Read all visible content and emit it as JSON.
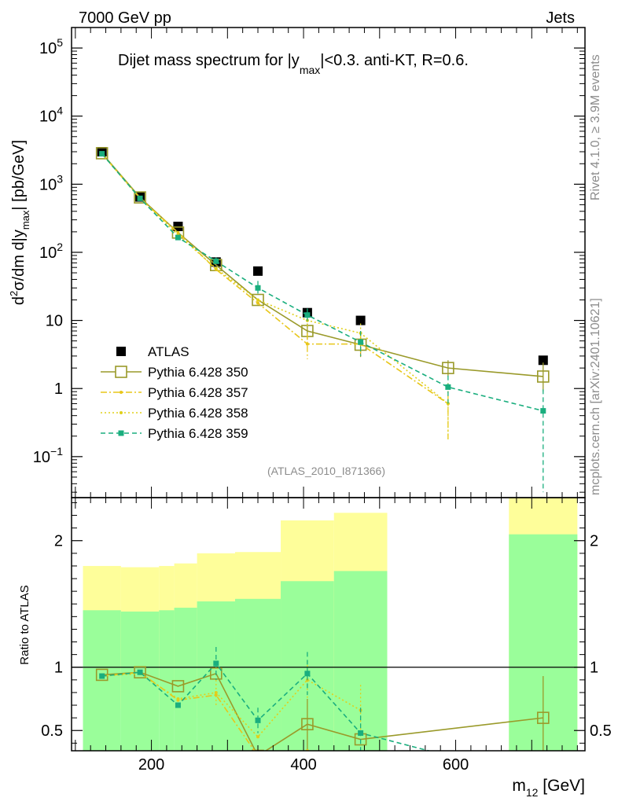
{
  "header": {
    "left": "7000 GeV pp",
    "right": "Jets"
  },
  "side_labels": {
    "rivet": "Rivet 4.1.0, ≥ 3.9M events",
    "mcplots": "mcplots.cern.ch [arXiv:2401.10621]"
  },
  "chart_data": [
    {
      "type": "scatter",
      "panel": "main",
      "title_pre": "Dijet mass spectrum for |y",
      "title_sub": "max",
      "title_post": "|<0.3.  anti-KT, R=0.6.",
      "ylabel_pre": "d",
      "ylabel_sup": "2",
      "ylabel_mid": "σ/dm d|y",
      "ylabel_sub": "max",
      "ylabel_post": "| [pb/GeV]",
      "yscale": "log",
      "ylim": [
        0.025,
        200000
      ],
      "xlim": [
        95,
        770
      ],
      "y_ticks": [
        {
          "value": 0.1,
          "base": "10",
          "exp": "−1"
        },
        {
          "value": 1,
          "base": "1",
          "exp": ""
        },
        {
          "value": 10,
          "base": "10",
          "exp": ""
        },
        {
          "value": 100,
          "base": "10",
          "exp": "2"
        },
        {
          "value": 1000,
          "base": "10",
          "exp": "3"
        },
        {
          "value": 10000,
          "base": "10",
          "exp": "4"
        },
        {
          "value": 100000,
          "base": "10",
          "exp": "5"
        }
      ],
      "watermark": "(ATLAS_2010_I871366)",
      "x": [
        135,
        185,
        235,
        285,
        340,
        405,
        475,
        590,
        715
      ],
      "x_bins": [
        [
          110,
          160
        ],
        [
          160,
          210
        ],
        [
          210,
          260
        ],
        [
          260,
          310
        ],
        [
          310,
          370
        ],
        [
          370,
          440
        ],
        [
          440,
          510
        ],
        [
          510,
          670
        ],
        [
          670,
          760
        ]
      ],
      "series": [
        {
          "name": "ATLAS",
          "color": "#000000",
          "style": "data",
          "values": [
            3000,
            650,
            240,
            72,
            53,
            13,
            10,
            null,
            2.6
          ]
        },
        {
          "name": "Pythia 6.428 350",
          "color": "#9a9a2a",
          "style": "solid",
          "values": [
            2850,
            640,
            195,
            65,
            20,
            7,
            4.4,
            2.0,
            1.5
          ],
          "err_low": [
            null,
            null,
            null,
            null,
            null,
            1.8,
            1.5,
            0.5,
            0.6
          ],
          "err_high": [
            null,
            null,
            null,
            null,
            null,
            2.0,
            1.8,
            0.6,
            0.9
          ]
        },
        {
          "name": "Pythia 6.428 357",
          "color": "#e8c619",
          "style": "dashdot",
          "values": [
            2800,
            620,
            195,
            56,
            18,
            4.5,
            4.5,
            0.6,
            null
          ],
          "err_low": [
            null,
            null,
            null,
            null,
            null,
            1.8,
            1.5,
            0.42,
            null
          ],
          "err_high": [
            null,
            null,
            null,
            null,
            null,
            2.0,
            1.8,
            0.6,
            null
          ]
        },
        {
          "name": "Pythia 6.428 358",
          "color": "#e0d01a",
          "style": "dotted",
          "values": [
            2800,
            620,
            180,
            58,
            20,
            10,
            6.5,
            0.6,
            null
          ],
          "err_low": [
            null,
            null,
            null,
            null,
            null,
            2.5,
            2.0,
            0.42,
            null
          ],
          "err_high": [
            null,
            null,
            null,
            null,
            null,
            3.0,
            2.5,
            0.6,
            null
          ]
        },
        {
          "name": "Pythia 6.428 359",
          "color": "#1aae7e",
          "style": "dashed",
          "values": [
            2800,
            620,
            165,
            74,
            30,
            12,
            4.8,
            1.05,
            0.47
          ],
          "err_low": [
            null,
            null,
            null,
            10,
            6,
            2.5,
            1.8,
            0.45,
            0.44
          ],
          "err_high": [
            null,
            null,
            null,
            10,
            8,
            3.0,
            2.2,
            0.5,
            0.5
          ]
        }
      ]
    },
    {
      "type": "scatter",
      "panel": "ratio",
      "ylabel": "Ratio to ATLAS",
      "xlabel_pre": "m",
      "xlabel_sub": "12",
      "xlabel_post": " [GeV]",
      "ylim": [
        0.34,
        2.34
      ],
      "xlim": [
        95,
        770
      ],
      "x_ticks": [
        200,
        400,
        600
      ],
      "y_ticks": [
        0.5,
        1,
        2
      ],
      "reference_line": 1,
      "bands": {
        "x_bins": [
          [
            110,
            160
          ],
          [
            160,
            210
          ],
          [
            210,
            230
          ],
          [
            230,
            260
          ],
          [
            260,
            310
          ],
          [
            310,
            370
          ],
          [
            370,
            440
          ],
          [
            440,
            510
          ],
          [
            670,
            760
          ]
        ],
        "yellow_low": [
          0.67,
          0.67,
          0.66,
          0.66,
          0.6,
          0.58,
          0.34,
          0.34,
          0.34
        ],
        "yellow_high": [
          1.8,
          1.79,
          1.8,
          1.82,
          1.9,
          1.91,
          2.16,
          2.22,
          2.34
        ],
        "green_low": [
          0.34,
          0.34,
          0.34,
          0.34,
          0.34,
          0.34,
          0.34,
          0.34,
          0.34
        ],
        "green_high": [
          1.45,
          1.44,
          1.45,
          1.47,
          1.52,
          1.54,
          1.68,
          1.76,
          2.05
        ],
        "yellow_color": "#fefe9a",
        "green_color": "#9afe9a"
      },
      "x": [
        135,
        185,
        235,
        285,
        340,
        405,
        475,
        590,
        715
      ],
      "series": [
        {
          "name": "Pythia 6.428 350",
          "color": "#9a9a2a",
          "style": "solid",
          "values": [
            0.94,
            0.96,
            0.85,
            0.95,
            0.3,
            0.55,
            0.43,
            null,
            0.6
          ],
          "err_low": [
            null,
            null,
            null,
            null,
            null,
            0.2,
            null,
            null,
            0.3
          ],
          "err_high": [
            null,
            null,
            null,
            null,
            null,
            0.2,
            null,
            null,
            0.33
          ]
        },
        {
          "name": "Pythia 6.428 357",
          "color": "#e8c619",
          "style": "dashdot",
          "values": [
            0.93,
            0.96,
            0.74,
            0.78,
            0.3,
            0.34,
            null,
            null,
            null
          ]
        },
        {
          "name": "Pythia 6.428 358",
          "color": "#e0d01a",
          "style": "dotted",
          "values": [
            0.93,
            0.95,
            0.75,
            0.8,
            0.45,
            0.9,
            0.66,
            null,
            null
          ],
          "err_low": [
            null,
            null,
            null,
            0.1,
            null,
            0.15,
            0.2,
            null,
            null
          ],
          "err_high": [
            null,
            null,
            null,
            0.1,
            null,
            0.15,
            0.2,
            null,
            null
          ]
        },
        {
          "name": "Pythia 6.428 359",
          "color": "#1aae7e",
          "style": "dashed",
          "values": [
            0.93,
            0.96,
            0.7,
            1.03,
            0.58,
            0.95,
            0.48,
            0.3,
            null
          ],
          "err_low": [
            null,
            null,
            null,
            0.13,
            0.1,
            0.17,
            0.2,
            null,
            null
          ],
          "err_high": [
            null,
            null,
            null,
            0.13,
            0.1,
            0.17,
            0.2,
            null,
            null
          ]
        }
      ]
    }
  ]
}
